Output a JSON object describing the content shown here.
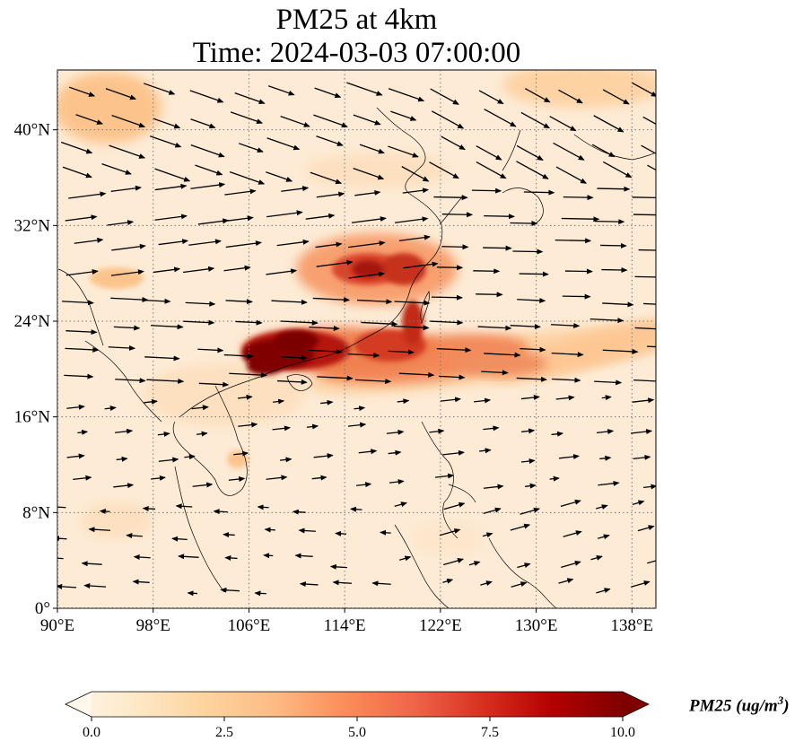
{
  "title": "PM25 at 4km",
  "subtitle": "Time: 2024-03-03 07:00:00",
  "lat_ticks": [
    "40°N",
    "32°N",
    "24°N",
    "16°N",
    "8°N",
    "0°"
  ],
  "lon_ticks": [
    "90°E",
    "98°E",
    "106°E",
    "114°E",
    "122°E",
    "130°E",
    "138°E"
  ],
  "colorbar": {
    "label": "PM25 (ug/m",
    "label_sup": "3",
    "label_end": ")",
    "ticks": [
      "0.0",
      "2.5",
      "5.0",
      "7.5",
      "10.0"
    ],
    "colormap": "OrRd",
    "colors": [
      "#fff7ec",
      "#fee8c8",
      "#fdd49e",
      "#fdbb84",
      "#fc8d59",
      "#ef6548",
      "#d7301f",
      "#b30000",
      "#7f0000"
    ]
  },
  "map": {
    "lon_range": [
      90,
      140
    ],
    "lat_range": [
      0,
      45
    ],
    "gridlines": "dotted",
    "vectors": "black wind arrows",
    "coastlines": true
  },
  "chart_data": {
    "type": "heatmap",
    "title": "PM25 at 4km",
    "subtitle": "Time: 2024-03-03 07:00:00",
    "x_ticks": [
      90,
      98,
      106,
      114,
      122,
      130,
      138
    ],
    "y_ticks": [
      0,
      8,
      16,
      24,
      32,
      40
    ],
    "xlim": [
      90,
      140
    ],
    "ylim": [
      0,
      45
    ],
    "colorbar_range": [
      0.0,
      10.0
    ],
    "hotspots": [
      {
        "lon": 108.5,
        "lat": 21.5,
        "value": 10.0
      },
      {
        "lon": 111.5,
        "lat": 22.5,
        "value": 9.5
      },
      {
        "lon": 116.5,
        "lat": 28.5,
        "value": 8.5
      },
      {
        "lon": 119.5,
        "lat": 27.5,
        "value": 8.0
      },
      {
        "lon": 117.5,
        "lat": 21.5,
        "value": 7.5
      },
      {
        "lon": 121.0,
        "lat": 22.5,
        "value": 8.5
      },
      {
        "lon": 113.0,
        "lat": 29.5,
        "value": 6.0
      },
      {
        "lon": 128.0,
        "lat": 20.5,
        "value": 4.0
      },
      {
        "lon": 90.5,
        "lat": 42.5,
        "value": 3.0
      },
      {
        "lon": 136.0,
        "lat": 44.5,
        "value": 3.0
      }
    ]
  }
}
